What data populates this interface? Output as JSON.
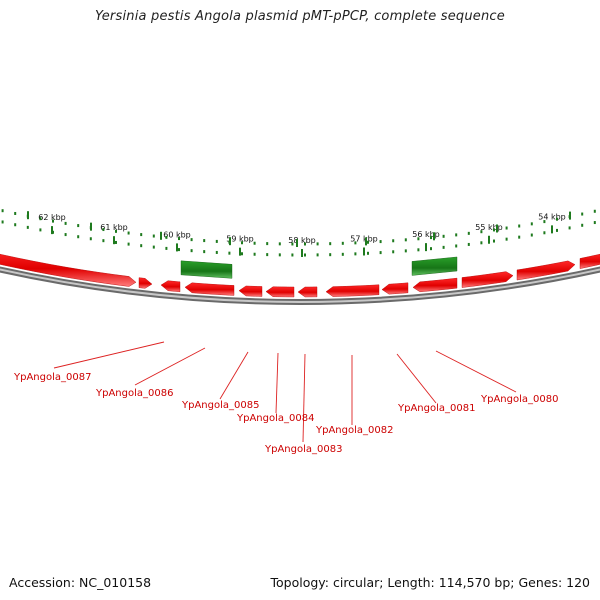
{
  "title": "Yersinia pestis Angola plasmid pMT-pPCP, complete sequence",
  "footer": {
    "accession": "Accession: NC_010158",
    "topology": "Topology: circular; Length: 114,570 bp; Genes: 120"
  },
  "colors": {
    "backbone": "#8a8a8a",
    "forward_gene": "#e00000",
    "reverse_gene": "#1f8a1f",
    "tick": "#1e7a1e",
    "label_text": "#cc0000",
    "leader_line": "#dd2222"
  },
  "kbp_labels": [
    "62 kbp",
    "61 kbp",
    "60 kbp",
    "59 kbp",
    "58 kbp",
    "57 kbp",
    "56 kbp",
    "55 kbp",
    "54 kbp"
  ],
  "gene_labels": [
    "YpAngola_0087",
    "YpAngola_0086",
    "YpAngola_0085",
    "YpAngola_0084",
    "YpAngola_0083",
    "YpAngola_0082",
    "YpAngola_0081",
    "YpAngola_0080"
  ]
}
